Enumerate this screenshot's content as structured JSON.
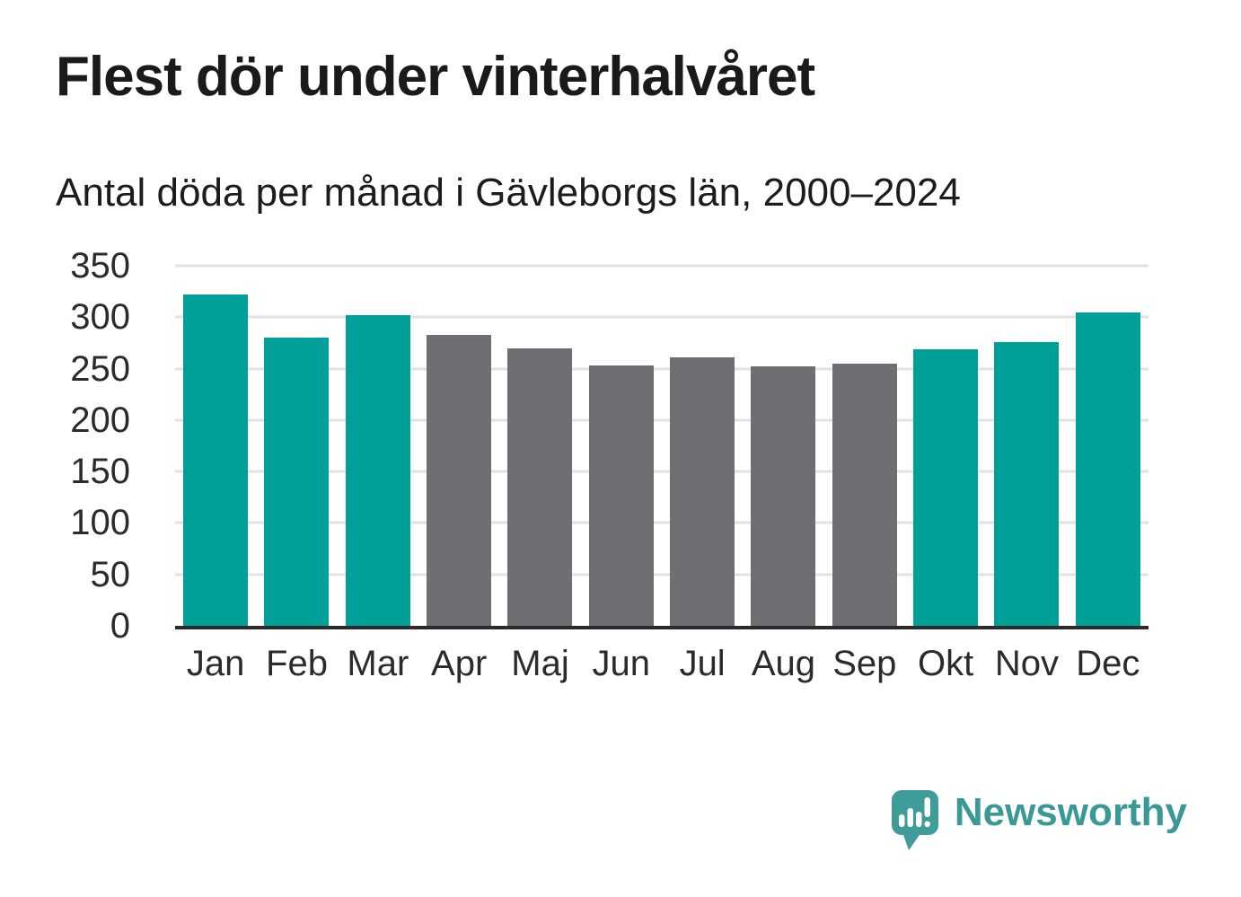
{
  "header": {
    "title": "Flest dör under vinterhalvåret",
    "subtitle": "Antal döda per månad i Gävleborgs län, 2000–2024"
  },
  "chart_data": {
    "type": "bar",
    "title": "Flest dör under vinterhalvåret",
    "subtitle": "Antal döda per månad i Gävleborgs län, 2000–2024",
    "categories": [
      "Jan",
      "Feb",
      "Mar",
      "Apr",
      "Maj",
      "Jun",
      "Jul",
      "Aug",
      "Sep",
      "Okt",
      "Nov",
      "Dec"
    ],
    "values": [
      322,
      280,
      302,
      283,
      270,
      253,
      261,
      252,
      255,
      269,
      276,
      305
    ],
    "bar_groups": [
      "winter",
      "winter",
      "winter",
      "summer",
      "summer",
      "summer",
      "summer",
      "summer",
      "summer",
      "winter",
      "winter",
      "winter"
    ],
    "xlabel": "",
    "ylabel": "",
    "ylim": [
      0,
      350
    ],
    "yticks": [
      0,
      50,
      100,
      150,
      200,
      250,
      300,
      350
    ],
    "grid": true,
    "legend": false,
    "colors": {
      "winter": "#00a099",
      "summer": "#6f6e73"
    }
  },
  "branding": {
    "logo_text": "Newsworthy",
    "logo_icon": "bar-chart-speech-bubble-icon",
    "logo_color": "#3f9d99",
    "logo_text_color": "#3a9996"
  },
  "colors": {
    "background": "#ffffff",
    "title_text": "#1a1a1a",
    "axis_text": "#2b2b2b",
    "gridline": "#e2e2e2",
    "axis_line": "#2b2b2b"
  }
}
